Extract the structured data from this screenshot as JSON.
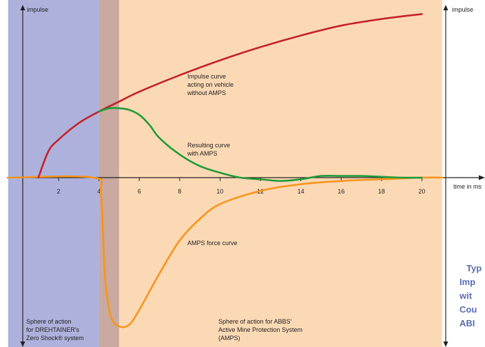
{
  "chart_data": {
    "type": "line",
    "xlim": [
      -0.5,
      21
    ],
    "ylim": [
      -1,
      1
    ],
    "xlabel": "time in ms",
    "ylabel_left": "impulse",
    "ylabel_right": "impulse",
    "xticks": [
      2,
      4,
      6,
      8,
      10,
      12,
      14,
      16,
      18,
      20
    ],
    "regions": [
      {
        "name": "drehtainer",
        "x": [
          -0.5,
          4
        ],
        "color": "#aeb1db",
        "label": [
          "Sphere of action",
          "for DREHTAINER's",
          "Zero Shock® system"
        ]
      },
      {
        "name": "overlap",
        "x": [
          4,
          5
        ],
        "color": "#c9a9a0",
        "label": []
      },
      {
        "name": "amps",
        "x": [
          5,
          21
        ],
        "color": "#fcd9b5",
        "label": [
          "Sphere of action for ABBS'",
          "Active Mine Protection System",
          "(AMPS)"
        ]
      }
    ],
    "series": [
      {
        "name": "impulse_without_amps",
        "color": "#c42128",
        "x": [
          1,
          1.5,
          2,
          3,
          4,
          5,
          6,
          8,
          10,
          12,
          14,
          16,
          18,
          20
        ],
        "y": [
          0,
          0.16,
          0.23,
          0.33,
          0.4,
          0.46,
          0.52,
          0.62,
          0.71,
          0.79,
          0.86,
          0.92,
          0.96,
          0.99
        ],
        "label": [
          "Impulse curve",
          "acting on vehicle",
          "without AMPS"
        ]
      },
      {
        "name": "resulting_with_amps",
        "color": "#1f9a38",
        "x": [
          4,
          4.5,
          5,
          5.5,
          6,
          6.5,
          7,
          8,
          9,
          10,
          11,
          12,
          13,
          14,
          15,
          16,
          17,
          18,
          19,
          20
        ],
        "y": [
          0.4,
          0.42,
          0.42,
          0.41,
          0.38,
          0.32,
          0.24,
          0.14,
          0.07,
          0.03,
          0.0,
          -0.01,
          -0.02,
          -0.01,
          0.01,
          0.01,
          0.01,
          0.005,
          0.0,
          0.0
        ],
        "label": [
          "Resulting curve",
          "with AMPS"
        ]
      },
      {
        "name": "amps_force",
        "color": "#f7941d",
        "x": [
          -0.5,
          3.7,
          4.1,
          4.3,
          4.6,
          5,
          5.5,
          6,
          7,
          8,
          9,
          10,
          12,
          14,
          16,
          18,
          20,
          21
        ],
        "y": [
          0,
          0,
          -0.1,
          -0.6,
          -0.84,
          -0.9,
          -0.89,
          -0.8,
          -0.58,
          -0.38,
          -0.25,
          -0.16,
          -0.08,
          -0.04,
          -0.02,
          -0.01,
          0.0,
          0.0
        ],
        "label": [
          "AMPS force curve"
        ]
      }
    ]
  },
  "side_text": [
    "Typ",
    "Imp",
    "wit",
    "Cou",
    "ABI"
  ]
}
